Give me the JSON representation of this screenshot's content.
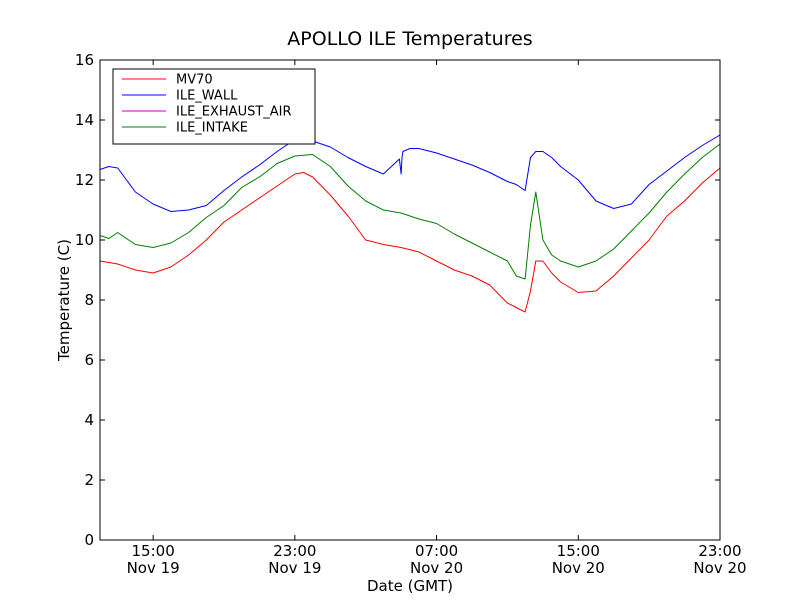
{
  "chart_data": {
    "type": "line",
    "title": "APOLLO ILE Temperatures",
    "xlabel": "Date (GMT)",
    "ylabel": "Temperature (C)",
    "xlim": [
      12.0,
      47.0
    ],
    "ylim": [
      0,
      16
    ],
    "x_unit": "hours since Nov 19 00:00 GMT",
    "yticks": [
      0,
      2,
      4,
      6,
      8,
      10,
      12,
      14,
      16
    ],
    "ytick_labels": [
      "0",
      "2",
      "4",
      "6",
      "8",
      "10",
      "12",
      "14",
      "16"
    ],
    "xticks": [
      {
        "value": 15,
        "time": "15:00",
        "date": "Nov 19"
      },
      {
        "value": 23,
        "time": "23:00",
        "date": "Nov 19"
      },
      {
        "value": 31,
        "time": "07:00",
        "date": "Nov 20"
      },
      {
        "value": 39,
        "time": "15:00",
        "date": "Nov 20"
      },
      {
        "value": 47,
        "time": "23:00",
        "date": "Nov 20"
      }
    ],
    "grid": false,
    "legend_position": "top-left",
    "series": [
      {
        "name": "MV70",
        "color": "#ff0000",
        "x": [
          12.0,
          12.5,
          13.0,
          14.0,
          15.0,
          16.0,
          17.0,
          18.0,
          19.0,
          20.0,
          21.0,
          22.0,
          23.0,
          23.5,
          24.0,
          25.0,
          26.0,
          27.0,
          28.0,
          29.0,
          30.0,
          31.0,
          32.0,
          33.0,
          34.0,
          35.0,
          35.5,
          36.0,
          36.3,
          36.6,
          37.0,
          37.5,
          38.0,
          39.0,
          40.0,
          41.0,
          42.0,
          43.0,
          44.0,
          45.0,
          46.0,
          47.0
        ],
        "values": [
          9.3,
          9.25,
          9.2,
          9.0,
          8.9,
          9.1,
          9.5,
          10.0,
          10.6,
          11.0,
          11.4,
          11.8,
          12.2,
          12.25,
          12.1,
          11.5,
          10.8,
          10.0,
          9.85,
          9.75,
          9.6,
          9.3,
          9.0,
          8.8,
          8.5,
          7.9,
          7.75,
          7.6,
          8.3,
          9.3,
          9.3,
          8.9,
          8.6,
          8.25,
          8.3,
          8.8,
          9.4,
          10.0,
          10.8,
          11.3,
          11.9,
          12.4
        ]
      },
      {
        "name": "ILE_WALL",
        "color": "#0000ff",
        "x": [
          12.0,
          12.5,
          13.0,
          14.0,
          15.0,
          16.0,
          17.0,
          18.0,
          19.0,
          20.0,
          21.0,
          22.0,
          23.0,
          24.0,
          25.0,
          26.0,
          27.0,
          28.0,
          28.9,
          29.0,
          29.05,
          29.1,
          29.5,
          30.0,
          31.0,
          32.0,
          33.0,
          34.0,
          35.0,
          35.5,
          36.0,
          36.3,
          36.6,
          37.0,
          37.5,
          38.0,
          39.0,
          40.0,
          41.0,
          42.0,
          43.0,
          44.0,
          45.0,
          46.0,
          47.0
        ],
        "values": [
          12.35,
          12.45,
          12.4,
          11.6,
          11.2,
          10.95,
          11.0,
          11.15,
          11.65,
          12.1,
          12.5,
          12.95,
          13.35,
          13.3,
          13.1,
          12.75,
          12.45,
          12.2,
          12.7,
          12.2,
          12.75,
          12.95,
          13.05,
          13.05,
          12.9,
          12.7,
          12.5,
          12.25,
          11.95,
          11.85,
          11.65,
          12.75,
          12.95,
          12.95,
          12.75,
          12.45,
          12.0,
          11.3,
          11.05,
          11.2,
          11.85,
          12.3,
          12.75,
          13.15,
          13.5
        ]
      },
      {
        "name": "ILE_EXHAUST_AIR",
        "color": "#bf00bf",
        "x": [],
        "values": []
      },
      {
        "name": "ILE_INTAKE",
        "color": "#008000",
        "x": [
          12.0,
          12.5,
          13.0,
          14.0,
          15.0,
          16.0,
          17.0,
          18.0,
          19.0,
          20.0,
          21.0,
          22.0,
          23.0,
          24.0,
          25.0,
          26.0,
          27.0,
          28.0,
          29.0,
          30.0,
          31.0,
          32.0,
          33.0,
          34.0,
          35.0,
          35.5,
          36.0,
          36.3,
          36.6,
          37.0,
          37.5,
          38.0,
          39.0,
          40.0,
          41.0,
          42.0,
          43.0,
          44.0,
          45.0,
          46.0,
          47.0
        ],
        "values": [
          10.15,
          10.05,
          10.25,
          9.85,
          9.75,
          9.9,
          10.25,
          10.75,
          11.15,
          11.75,
          12.1,
          12.55,
          12.8,
          12.85,
          12.45,
          11.8,
          11.3,
          11.0,
          10.9,
          10.7,
          10.55,
          10.2,
          9.9,
          9.6,
          9.3,
          8.8,
          8.7,
          10.5,
          11.6,
          10.0,
          9.5,
          9.3,
          9.1,
          9.3,
          9.7,
          10.3,
          10.9,
          11.6,
          12.2,
          12.75,
          13.2
        ]
      }
    ]
  }
}
